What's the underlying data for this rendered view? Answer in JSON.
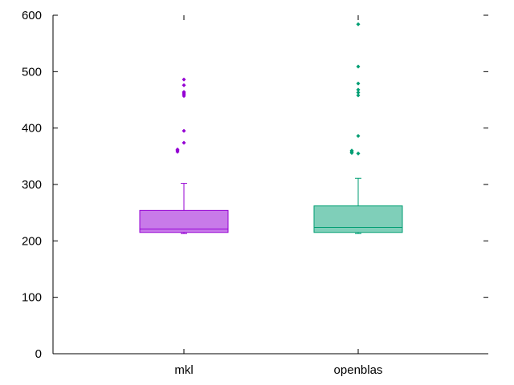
{
  "chart_data": {
    "type": "boxplot",
    "title": "",
    "xlabel": "",
    "ylabel": "",
    "ylim": [
      0,
      600
    ],
    "yticks": [
      0,
      100,
      200,
      300,
      400,
      500,
      600
    ],
    "ytick_labels": [
      "0",
      "100",
      "200",
      "300",
      "400",
      "500",
      "600"
    ],
    "grid": false,
    "legend": "none",
    "categories": [
      "mkl",
      "openblas"
    ],
    "series": [
      {
        "category": "mkl",
        "color": "#9400d3",
        "fill": "#c87ae9",
        "min": 213,
        "q1": 215,
        "median": 221,
        "q3": 254,
        "max": 302,
        "outliers": [
          360,
          358,
          362,
          374,
          395,
          457,
          460,
          462,
          464,
          476,
          486
        ]
      },
      {
        "category": "openblas",
        "color": "#009e73",
        "fill": "#7fcfb9",
        "min": 213,
        "q1": 215,
        "median": 224,
        "q3": 262,
        "max": 311,
        "outliers": [
          355,
          356,
          358,
          360,
          386,
          458,
          463,
          468,
          479,
          509,
          584
        ]
      }
    ]
  }
}
